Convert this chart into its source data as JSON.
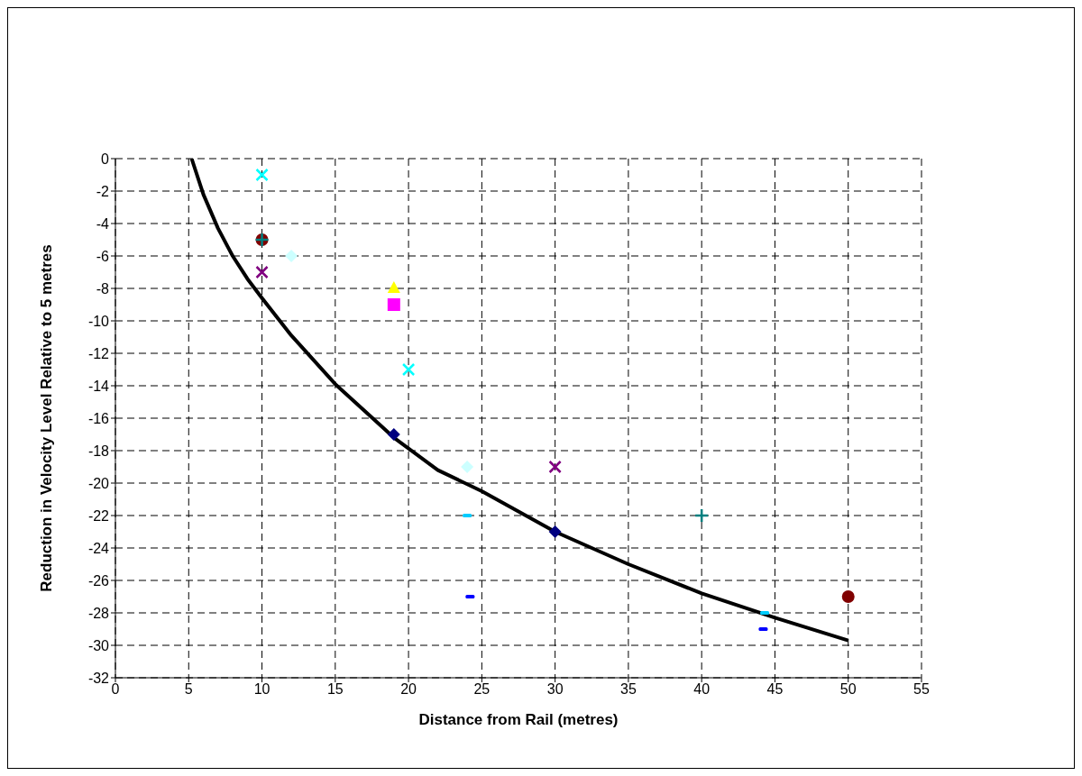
{
  "chart_data": {
    "type": "scatter",
    "xlabel": "Distance from Rail (metres)",
    "ylabel": "Reduction in Velocity Level Relative to 5 metres",
    "xlim": [
      0,
      55
    ],
    "xticks": [
      0,
      5,
      10,
      15,
      20,
      25,
      30,
      35,
      40,
      45,
      50,
      55
    ],
    "ylim": [
      -32,
      0
    ],
    "yticks": [
      -32,
      -30,
      -28,
      -26,
      -24,
      -22,
      -20,
      -18,
      -16,
      -14,
      -12,
      -10,
      -8,
      -6,
      -4,
      -2,
      0
    ],
    "grid": true,
    "legend": false,
    "series": [
      {
        "color": "#000000",
        "type": "line",
        "marker": "none",
        "x": [
          5.2,
          6,
          7,
          8,
          9,
          10,
          12,
          15,
          19,
          22,
          25,
          30,
          35,
          40,
          45,
          50
        ],
        "values": [
          0,
          -2.2,
          -4.3,
          -6,
          -7.4,
          -8.6,
          -10.9,
          -13.9,
          -17.2,
          -19.2,
          -20.5,
          -23,
          -25,
          -26.8,
          -28.3,
          -29.7
        ]
      },
      {
        "color": "#00ffff",
        "marker": "cross",
        "x": [
          10,
          20
        ],
        "values": [
          -1,
          -13
        ]
      },
      {
        "color": "#800000",
        "marker": "circle",
        "x": [
          10,
          50
        ],
        "values": [
          -5,
          -27
        ]
      },
      {
        "color": "#008080",
        "marker": "plus",
        "x": [
          10,
          40
        ],
        "values": [
          -5,
          -22
        ]
      },
      {
        "color": "#800080",
        "marker": "cross",
        "x": [
          10,
          30
        ],
        "values": [
          -7,
          -19
        ]
      },
      {
        "color": "#ccffff",
        "marker": "diamond",
        "x": [
          12,
          24
        ],
        "values": [
          -6,
          -19
        ]
      },
      {
        "color": "#ffff00",
        "marker": "triangle",
        "x": [
          19
        ],
        "values": [
          -8
        ]
      },
      {
        "color": "#ff00ff",
        "marker": "square",
        "x": [
          19
        ],
        "values": [
          -9
        ]
      },
      {
        "color": "#000080",
        "marker": "diamond",
        "x": [
          19,
          30
        ],
        "values": [
          -17,
          -23
        ]
      },
      {
        "color": "#00ccff",
        "x": [
          24,
          44.3
        ],
        "values": [
          -22,
          -28
        ]
      },
      {
        "color": "#0000ff",
        "x": [
          24.2,
          44.2
        ],
        "values": [
          -27,
          -29
        ]
      }
    ]
  }
}
